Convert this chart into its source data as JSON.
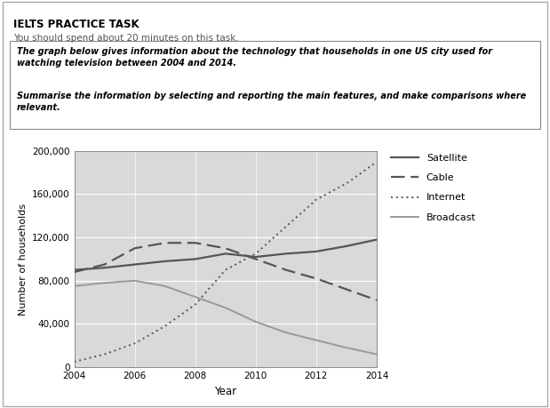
{
  "years": [
    2004,
    2005,
    2006,
    2007,
    2008,
    2009,
    2010,
    2011,
    2012,
    2013,
    2014
  ],
  "satellite": [
    90000,
    92000,
    95000,
    98000,
    100000,
    105000,
    102000,
    105000,
    107000,
    112000,
    118000
  ],
  "cable": [
    88000,
    95000,
    110000,
    115000,
    115000,
    110000,
    100000,
    90000,
    82000,
    72000,
    62000
  ],
  "internet": [
    5000,
    12000,
    22000,
    38000,
    58000,
    90000,
    105000,
    130000,
    155000,
    170000,
    190000
  ],
  "broadcast": [
    75000,
    78000,
    80000,
    75000,
    65000,
    55000,
    42000,
    32000,
    25000,
    18000,
    12000
  ],
  "ylim": [
    0,
    200000
  ],
  "yticks": [
    0,
    40000,
    80000,
    120000,
    160000,
    200000
  ],
  "ytick_labels": [
    "0",
    "40,000",
    "80,000",
    "120,000",
    "160,000",
    "200,000"
  ],
  "xlabel": "Year",
  "ylabel": "Number of households",
  "satellite_color": "#555555",
  "cable_color": "#555555",
  "internet_color": "#555555",
  "broadcast_color": "#999999",
  "plot_bg": "#d9d9d9",
  "xticks": [
    2004,
    2006,
    2008,
    2010,
    2012,
    2014
  ],
  "title_main": "IELTS PRACTICE TASK",
  "title_sub": "You should spend about 20 minutes on this task.",
  "prompt_text1": "The graph below gives information about the technology that households in one US city used for\nwatching television between 2004 and 2014.",
  "prompt_text2": "Summarise the information by selecting and reporting the main features, and make comparisons where\nrelevant."
}
